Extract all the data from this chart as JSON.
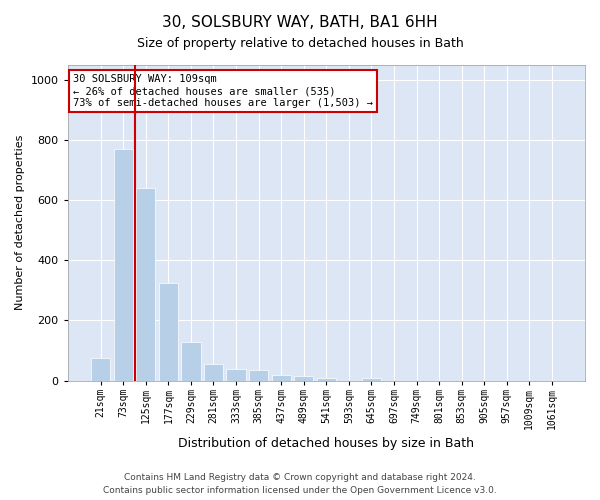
{
  "title": "30, SOLSBURY WAY, BATH, BA1 6HH",
  "subtitle": "Size of property relative to detached houses in Bath",
  "xlabel": "Distribution of detached houses by size in Bath",
  "ylabel": "Number of detached properties",
  "footer_line1": "Contains HM Land Registry data © Crown copyright and database right 2024.",
  "footer_line2": "Contains public sector information licensed under the Open Government Licence v3.0.",
  "annotation_line1": "30 SOLSBURY WAY: 109sqm",
  "annotation_line2": "← 26% of detached houses are smaller (535)",
  "annotation_line3": "73% of semi-detached houses are larger (1,503) →",
  "bar_color": "#b8cfe8",
  "vline_color": "#cc0000",
  "fig_bg_color": "#ffffff",
  "plot_bg_color": "#dce6f5",
  "grid_color": "#ffffff",
  "categories": [
    "21sqm",
    "73sqm",
    "125sqm",
    "177sqm",
    "229sqm",
    "281sqm",
    "333sqm",
    "385sqm",
    "437sqm",
    "489sqm",
    "541sqm",
    "593sqm",
    "645sqm",
    "697sqm",
    "749sqm",
    "801sqm",
    "853sqm",
    "905sqm",
    "957sqm",
    "1009sqm",
    "1061sqm"
  ],
  "values": [
    75,
    770,
    640,
    325,
    130,
    55,
    40,
    35,
    20,
    15,
    10,
    0,
    10,
    0,
    0,
    0,
    0,
    0,
    0,
    0,
    0
  ],
  "ylim": [
    0,
    1050
  ],
  "yticks": [
    0,
    200,
    400,
    600,
    800,
    1000
  ],
  "vline_pos": 1.5,
  "annotation_box_facecolor": "#ffffff",
  "annotation_box_edgecolor": "#cc0000",
  "title_fontsize": 11,
  "subtitle_fontsize": 9,
  "ylabel_fontsize": 8,
  "xlabel_fontsize": 9,
  "tick_fontsize": 7,
  "footer_fontsize": 6.5,
  "annotation_fontsize": 7.5
}
